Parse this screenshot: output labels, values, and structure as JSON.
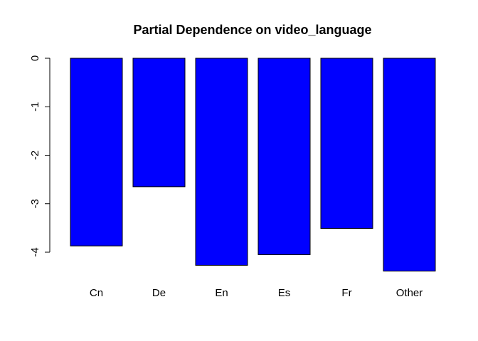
{
  "chart_data": {
    "type": "bar",
    "title": "Partial Dependence on video_language",
    "xlabel": "",
    "ylabel": "",
    "categories": [
      "Cn",
      "De",
      "En",
      "Es",
      "Fr",
      "Other"
    ],
    "values": [
      -3.87,
      -2.65,
      -4.27,
      -4.05,
      -3.51,
      -4.39
    ],
    "ylim": [
      -4.39,
      0
    ],
    "yticks": [
      0,
      -1,
      -2,
      -3,
      -4
    ],
    "bar_color": "#0000ff",
    "border_color": "#000000",
    "grid": false,
    "legend": "none"
  }
}
